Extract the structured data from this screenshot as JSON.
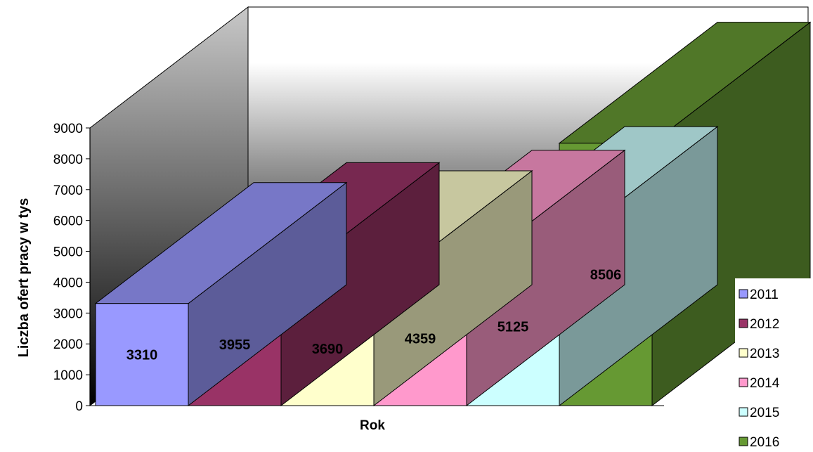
{
  "chart_data": {
    "type": "bar",
    "title": "",
    "xlabel": "Rok",
    "ylabel": "Liczba ofert pracy w tys",
    "ylim": [
      0,
      9000
    ],
    "yticks": [
      0,
      1000,
      2000,
      3000,
      4000,
      5000,
      6000,
      7000,
      8000,
      9000
    ],
    "grid": false,
    "legend_position": "bottom-right",
    "series": [
      {
        "name": "2011",
        "value": 3310,
        "value_label": "3310",
        "color": "#9999ff"
      },
      {
        "name": "2012",
        "value": 3955,
        "value_label": "3955",
        "color": "#993366"
      },
      {
        "name": "2013",
        "value": 3690,
        "value_label": "3690",
        "color": "#ffffcc"
      },
      {
        "name": "2014",
        "value": 4359,
        "value_label": "4359",
        "color": "#ff99cc"
      },
      {
        "name": "2015",
        "value": 5125,
        "value_label": "5125",
        "color": "#ccffff"
      },
      {
        "name": "2016",
        "value": 8506,
        "value_label": "8506",
        "color": "#669933"
      }
    ]
  }
}
